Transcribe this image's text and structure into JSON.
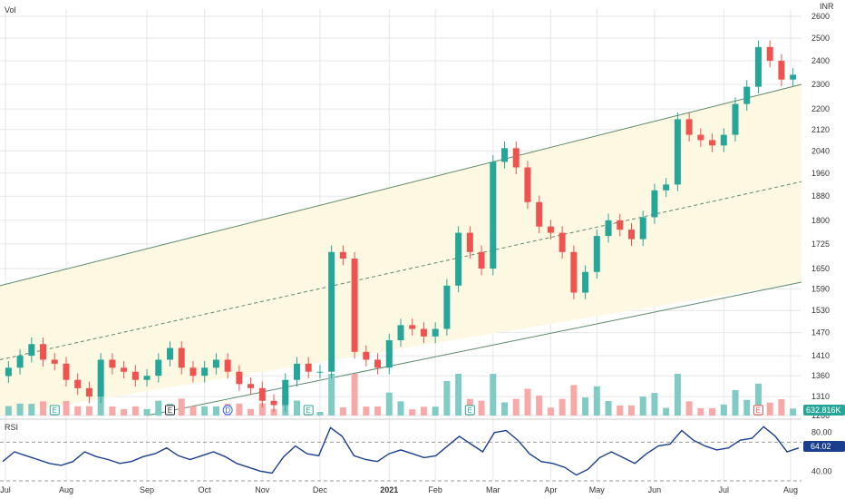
{
  "labels": {
    "vol": "Vol",
    "currency": "INR",
    "rsi": "RSI",
    "volume_value": "632.816K",
    "rsi_value": "64.02"
  },
  "colors": {
    "up": "#26a69a",
    "down": "#ef5350",
    "channel": "#5c8a6e",
    "channel_fill": "#fdf8e1",
    "rsi_line": "#1a3e8f",
    "grid": "#e6e6e6",
    "vol_up": "#80cbc4",
    "vol_down": "#f7a9a7"
  },
  "chart_data": {
    "type": "candlestick",
    "x_ticks": [
      "Jul",
      "Aug",
      "Sep",
      "Oct",
      "Nov",
      "Dec",
      "2021",
      "Feb",
      "Mar",
      "Apr",
      "May",
      "Jun",
      "Jul",
      "Aug"
    ],
    "y_ticks": [
      1266,
      1310,
      1360,
      1410,
      1470,
      1530,
      1590,
      1650,
      1725,
      1800,
      1880,
      1960,
      2040,
      2120,
      2200,
      2300,
      2400,
      2500,
      2600
    ],
    "y_scale": "log",
    "ylim": [
      1266,
      2600
    ],
    "close_series": [
      [
        "Jul",
        1380
      ],
      [
        "Jul",
        1410
      ],
      [
        "Jul",
        1440
      ],
      [
        "Jul",
        1400
      ],
      [
        "Jul",
        1390
      ],
      [
        "Aug",
        1350
      ],
      [
        "Aug",
        1330
      ],
      [
        "Aug",
        1310
      ],
      [
        "Aug",
        1400
      ],
      [
        "Aug",
        1380
      ],
      [
        "Aug",
        1370
      ],
      [
        "Aug",
        1350
      ],
      [
        "Sep",
        1360
      ],
      [
        "Sep",
        1400
      ],
      [
        "Sep",
        1430
      ],
      [
        "Sep",
        1380
      ],
      [
        "Sep",
        1360
      ],
      [
        "Oct",
        1380
      ],
      [
        "Oct",
        1400
      ],
      [
        "Oct",
        1370
      ],
      [
        "Oct",
        1340
      ],
      [
        "Oct",
        1330
      ],
      [
        "Nov",
        1300
      ],
      [
        "Nov",
        1290
      ],
      [
        "Nov",
        1350
      ],
      [
        "Nov",
        1390
      ],
      [
        "Nov",
        1370
      ],
      [
        "Dec",
        1370
      ],
      [
        "Dec",
        1700
      ],
      [
        "Dec",
        1680
      ],
      [
        "Dec",
        1420
      ],
      [
        "Dec",
        1400
      ],
      [
        "Dec",
        1380
      ],
      [
        "2021",
        1450
      ],
      [
        "2021",
        1490
      ],
      [
        "2021",
        1480
      ],
      [
        "2021",
        1460
      ],
      [
        "Feb",
        1480
      ],
      [
        "Feb",
        1600
      ],
      [
        "Feb",
        1760
      ],
      [
        "Feb",
        1700
      ],
      [
        "Feb",
        1650
      ],
      [
        "Mar",
        2000
      ],
      [
        "Mar",
        2050
      ],
      [
        "Mar",
        1980
      ],
      [
        "Mar",
        1860
      ],
      [
        "Mar",
        1780
      ],
      [
        "Apr",
        1760
      ],
      [
        "Apr",
        1700
      ],
      [
        "Apr",
        1580
      ],
      [
        "Apr",
        1640
      ],
      [
        "May",
        1750
      ],
      [
        "May",
        1800
      ],
      [
        "May",
        1770
      ],
      [
        "May",
        1740
      ],
      [
        "May",
        1810
      ],
      [
        "Jun",
        1900
      ],
      [
        "Jun",
        1920
      ],
      [
        "Jun",
        2160
      ],
      [
        "Jun",
        2100
      ],
      [
        "Jun",
        2080
      ],
      [
        "Jun",
        2060
      ],
      [
        "Jul",
        2100
      ],
      [
        "Jul",
        2220
      ],
      [
        "Jul",
        2290
      ],
      [
        "Jul",
        2460
      ],
      [
        "Jul",
        2400
      ],
      [
        "Jul",
        2320
      ],
      [
        "Aug",
        2340
      ]
    ],
    "channel_lines": {
      "upper": [
        [
          "Jul",
          1600
        ],
        [
          "Aug",
          2300
        ]
      ],
      "middle": [
        [
          "Jul",
          1400
        ],
        [
          "Aug",
          1930
        ]
      ],
      "lower": [
        [
          "Sep",
          1266
        ],
        [
          "Aug",
          1610
        ]
      ]
    },
    "rsi": {
      "ylim": [
        30,
        90
      ],
      "ticks": [
        80,
        40
      ],
      "levels": [
        70,
        30
      ],
      "values": [
        50,
        60,
        56,
        52,
        48,
        46,
        50,
        60,
        55,
        52,
        48,
        50,
        55,
        58,
        64,
        56,
        52,
        56,
        60,
        55,
        48,
        44,
        40,
        38,
        55,
        66,
        58,
        56,
        85,
        76,
        56,
        52,
        50,
        58,
        62,
        58,
        54,
        56,
        66,
        76,
        68,
        60,
        80,
        82,
        72,
        58,
        50,
        48,
        44,
        36,
        42,
        54,
        60,
        54,
        48,
        58,
        66,
        68,
        82,
        72,
        66,
        62,
        64,
        72,
        74,
        86,
        76,
        60,
        64
      ]
    },
    "volume_last": "632.816K",
    "rsi_last": "64.02"
  },
  "event_markers": [
    {
      "pos": 4,
      "letter": "E",
      "shape": "square",
      "color": "#26a69a"
    },
    {
      "pos": 14,
      "letter": "E",
      "shape": "square",
      "color": "#333333"
    },
    {
      "pos": 19,
      "letter": "D",
      "shape": "circle",
      "color": "#2962ff"
    },
    {
      "pos": 26,
      "letter": "E",
      "shape": "square",
      "color": "#26a69a"
    },
    {
      "pos": 40,
      "letter": "E",
      "shape": "square",
      "color": "#26a69a"
    },
    {
      "pos": 65,
      "letter": "E",
      "shape": "square",
      "color": "#ef5350"
    }
  ]
}
